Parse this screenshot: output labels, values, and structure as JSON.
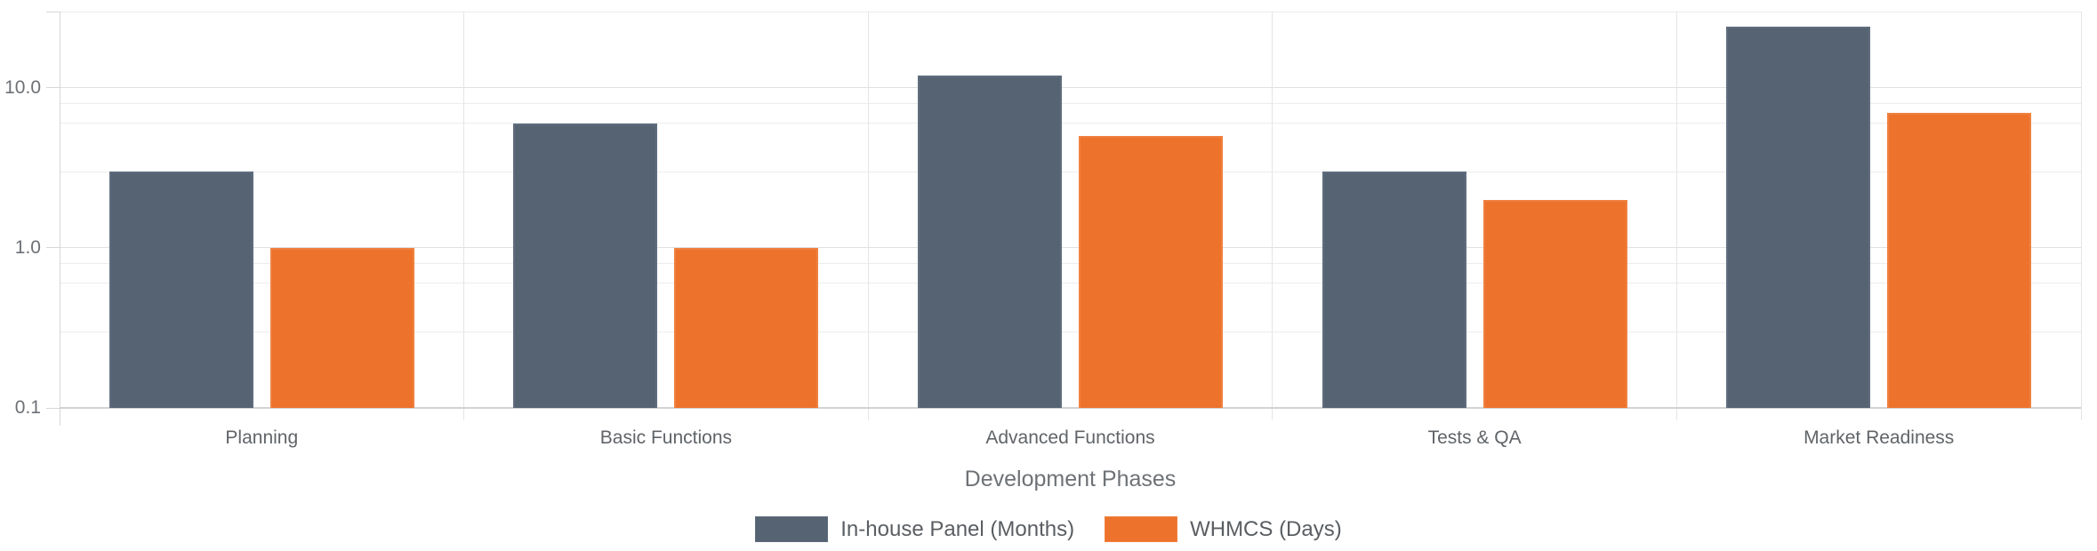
{
  "chart_data": {
    "type": "bar",
    "title": "",
    "categories": [
      "Planning",
      "Basic Functions",
      "Advanced Functions",
      "Tests & QA",
      "Market Readiness"
    ],
    "series": [
      {
        "name": "In-house Panel (Months)",
        "values": [
          3,
          6,
          12,
          3,
          24
        ],
        "color": "#566373",
        "border_color": "#5f6d7d"
      },
      {
        "name": "WHMCS (Days)",
        "values": [
          1,
          1,
          5,
          2,
          7
        ],
        "color": "#ed722b",
        "border_color": "#ef8140"
      }
    ],
    "xlabel": "Development Phases",
    "ylabel": "",
    "y_scale": "log",
    "ylim": [
      0.1,
      30
    ],
    "yticks": [
      {
        "label": "10.0",
        "value": 10
      },
      {
        "label": "1.0",
        "value": 1
      },
      {
        "label": "0.1",
        "value": 0.1
      }
    ],
    "minor_gridlines": [
      0.3,
      0.6,
      0.8,
      3,
      6,
      8,
      30
    ],
    "grid": true,
    "legend_position": "bottom"
  }
}
